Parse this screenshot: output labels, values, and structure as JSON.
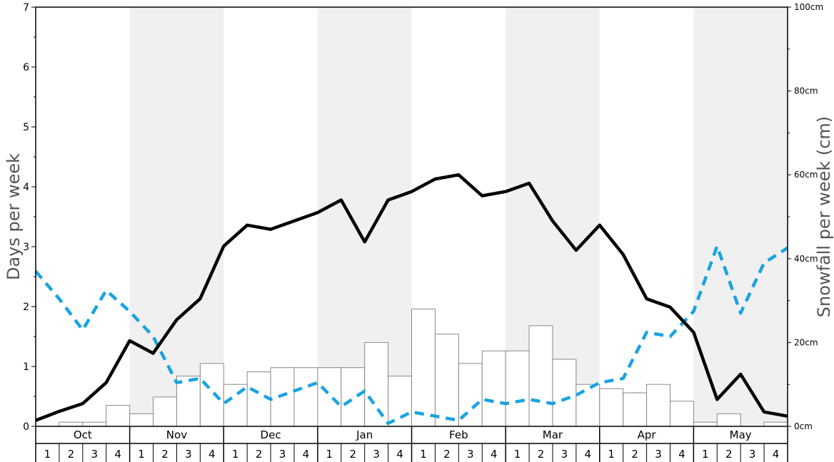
{
  "chart_data": {
    "type": "bar+line",
    "ylabel_left": "Days per week",
    "ylabel_right": "Snowfall per week (cm)",
    "ylim_left": [
      0,
      7
    ],
    "ylim_right": [
      0,
      100
    ],
    "left_ticks": [
      "0",
      "1",
      "2",
      "3",
      "4",
      "5",
      "6",
      "7"
    ],
    "right_ticks": [
      "0cm",
      "20cm",
      "40cm",
      "60cm",
      "80cm",
      "100cm"
    ],
    "months": [
      "Oct",
      "Nov",
      "Dec",
      "Jan",
      "Feb",
      "Mar",
      "Apr",
      "May"
    ],
    "weeks": [
      "1",
      "2",
      "3",
      "4"
    ],
    "shaded_months": [
      "Nov",
      "Jan",
      "Mar",
      "May"
    ],
    "colors": {
      "shade": "#f0f0f0",
      "bar_fill": "#ffffff",
      "bar_stroke": "#888888",
      "solid_line": "#000000",
      "dashed_line": "#1aa3e0"
    },
    "series": [
      {
        "chart": "bar",
        "axis": "right",
        "values": [
          0,
          1,
          1,
          5,
          3,
          7,
          12,
          15,
          10,
          13,
          14,
          14,
          14,
          14,
          20,
          12,
          28,
          22,
          15,
          18,
          18,
          24,
          16,
          10,
          9,
          8,
          10,
          6,
          1,
          3,
          0,
          1
        ]
      },
      {
        "chart": "line-solid",
        "axis": "left",
        "values": [
          0.1,
          0.25,
          0.38,
          0.73,
          1.43,
          1.22,
          1.78,
          2.13,
          3.01,
          3.36,
          3.29,
          3.43,
          3.57,
          3.78,
          3.08,
          3.78,
          3.92,
          4.13,
          4.2,
          3.85,
          3.92,
          4.06,
          3.43,
          2.94,
          3.36,
          2.87,
          2.13,
          1.99,
          1.57,
          0.45,
          0.87,
          0.24,
          0.17
        ]
      },
      {
        "chart": "line-dashed",
        "axis": "left",
        "values": [
          2.59,
          2.13,
          1.61,
          2.27,
          1.92,
          1.5,
          0.73,
          0.8,
          0.38,
          0.66,
          0.45,
          0.59,
          0.73,
          0.33,
          0.59,
          0.05,
          0.24,
          0.17,
          0.1,
          0.45,
          0.38,
          0.45,
          0.38,
          0.52,
          0.73,
          0.8,
          1.57,
          1.5,
          1.92,
          3.01,
          1.89,
          2.73,
          2.98
        ]
      }
    ]
  }
}
